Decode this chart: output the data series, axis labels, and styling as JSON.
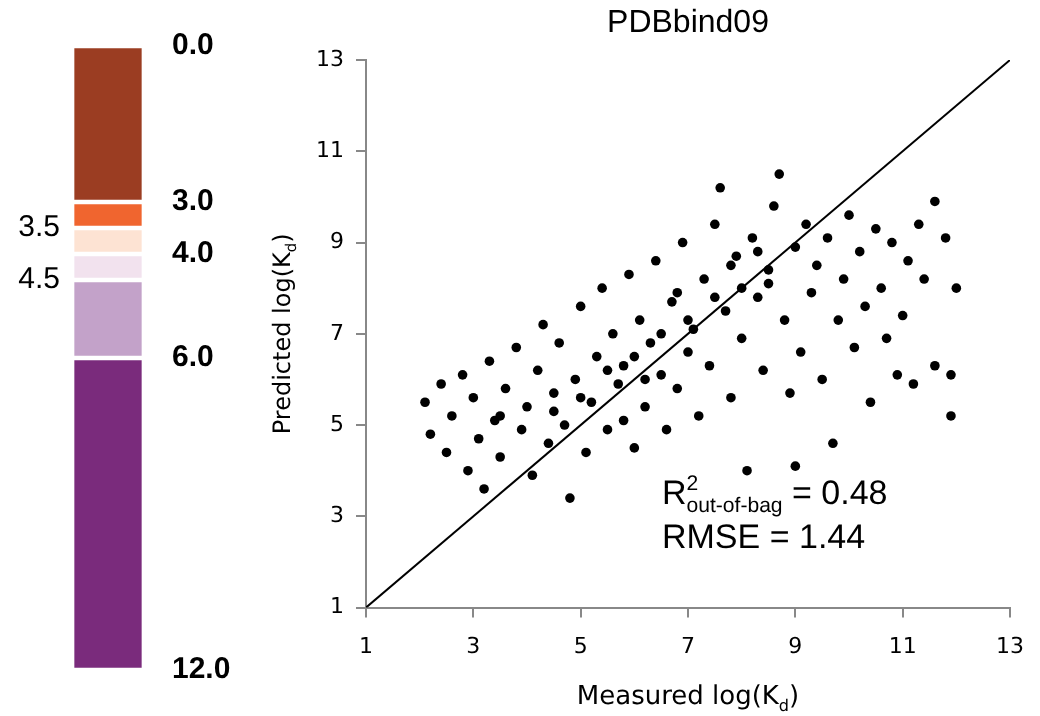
{
  "chart_data": [
    {
      "type": "bar",
      "stacked": true,
      "categories": [
        null
      ],
      "grid": false,
      "legend": false,
      "ylim": [
        12,
        0
      ],
      "yticks": [
        {
          "value": 3.5,
          "label": "3.5"
        },
        {
          "value": 4.5,
          "label": "4.5"
        }
      ],
      "y2lim": [
        12,
        0
      ],
      "y2ticks": [
        {
          "value": 0,
          "label": "0.0"
        },
        {
          "value": 3,
          "label": "3.0"
        },
        {
          "value": 4,
          "label": "4.0"
        },
        {
          "value": 6,
          "label": "6.0"
        },
        {
          "value": 12,
          "label": "12.0"
        }
      ],
      "series": [
        {
          "color": "#9b3d22",
          "values": [
            3
          ]
        },
        {
          "color": "#f0652f",
          "values": [
            0.5
          ]
        },
        {
          "color": "#fde3d3",
          "values": [
            0.5
          ]
        },
        {
          "color": "#f2e2ee",
          "values": [
            0.5
          ]
        },
        {
          "color": "#c3a2c9",
          "values": [
            1.5
          ]
        },
        {
          "color": "#7a2b7c",
          "values": [
            6
          ]
        }
      ]
    },
    {
      "type": "scatter",
      "title": "PDBbind09",
      "xlabel": "Measured log(K$_{d}$)",
      "ylabel": "Predicted log(K$_{d}$)",
      "xlim": [
        1,
        13
      ],
      "ylim": [
        1,
        13
      ],
      "xticks": [
        1,
        3,
        5,
        7,
        9,
        11,
        13
      ],
      "yticks": [
        1,
        3,
        5,
        7,
        9,
        11,
        13
      ],
      "grid": false,
      "legend": false,
      "marker": "circle",
      "annotations": [
        "R$^{2}$$_{out-of-bag}$ = 0.48",
        "RMSE = 1.44"
      ],
      "series": [
        {
          "type": "scatter",
          "color": "#000000",
          "x": [
            2.1,
            2.2,
            2.4,
            2.5,
            2.6,
            2.8,
            2.9,
            3.0,
            3.1,
            3.2,
            3.3,
            3.4,
            3.5,
            3.6,
            3.8,
            3.9,
            4.0,
            4.1,
            4.2,
            4.3,
            4.4,
            4.5,
            4.6,
            4.7,
            4.8,
            4.9,
            5.0,
            5.1,
            5.2,
            5.3,
            5.4,
            5.5,
            5.6,
            5.7,
            5.8,
            5.9,
            6.0,
            6.1,
            6.2,
            6.3,
            6.4,
            6.5,
            6.6,
            6.7,
            6.8,
            6.9,
            7.0,
            7.1,
            7.2,
            7.3,
            7.4,
            7.5,
            7.6,
            7.7,
            7.8,
            7.9,
            8.0,
            8.1,
            8.2,
            8.3,
            8.4,
            8.5,
            8.6,
            8.7,
            8.8,
            8.9,
            9.0,
            9.0,
            9.1,
            9.2,
            9.3,
            9.4,
            9.5,
            9.6,
            9.7,
            9.8,
            9.9,
            10.0,
            10.1,
            10.2,
            10.3,
            10.4,
            10.5,
            10.6,
            10.7,
            10.8,
            10.9,
            11.0,
            11.1,
            11.2,
            11.3,
            11.4,
            11.6,
            11.6,
            11.8,
            11.9,
            11.9,
            12.0,
            5.5,
            6.0,
            6.5,
            7.0,
            7.5,
            8.0,
            8.5,
            6.2,
            5.0,
            4.5,
            3.5,
            7.8,
            8.3,
            6.8,
            5.8
          ],
          "values": [
            5.5,
            4.8,
            5.9,
            4.4,
            5.2,
            6.1,
            4.0,
            5.6,
            4.7,
            3.6,
            6.4,
            5.1,
            4.3,
            5.8,
            6.7,
            4.9,
            5.4,
            3.9,
            6.2,
            7.2,
            4.6,
            5.7,
            6.8,
            5.0,
            3.4,
            6.0,
            7.6,
            4.4,
            5.5,
            6.5,
            8.0,
            4.9,
            7.0,
            5.9,
            6.3,
            8.3,
            4.5,
            7.3,
            5.4,
            6.8,
            8.6,
            6.1,
            4.9,
            7.7,
            5.8,
            9.0,
            6.6,
            7.1,
            5.2,
            8.2,
            6.3,
            9.4,
            10.2,
            7.5,
            5.6,
            8.7,
            6.9,
            4.0,
            9.1,
            7.8,
            6.2,
            8.4,
            9.8,
            10.5,
            7.3,
            5.7,
            8.9,
            4.1,
            6.6,
            9.4,
            7.9,
            8.5,
            6.0,
            9.1,
            4.6,
            7.3,
            8.2,
            9.6,
            6.7,
            8.8,
            7.6,
            5.5,
            9.3,
            8.0,
            6.9,
            9.0,
            6.1,
            7.4,
            8.6,
            5.9,
            9.4,
            8.2,
            9.9,
            6.3,
            9.1,
            5.2,
            6.1,
            8.0,
            6.2,
            6.5,
            7.0,
            7.3,
            7.8,
            8.0,
            8.1,
            6.0,
            5.6,
            5.3,
            5.2,
            8.5,
            8.8,
            7.9,
            5.1
          ]
        },
        {
          "type": "line",
          "color": "#000000",
          "x": [
            1,
            13
          ],
          "values": [
            1,
            13
          ],
          "marker": "none",
          "line_style": "solid"
        }
      ]
    }
  ]
}
